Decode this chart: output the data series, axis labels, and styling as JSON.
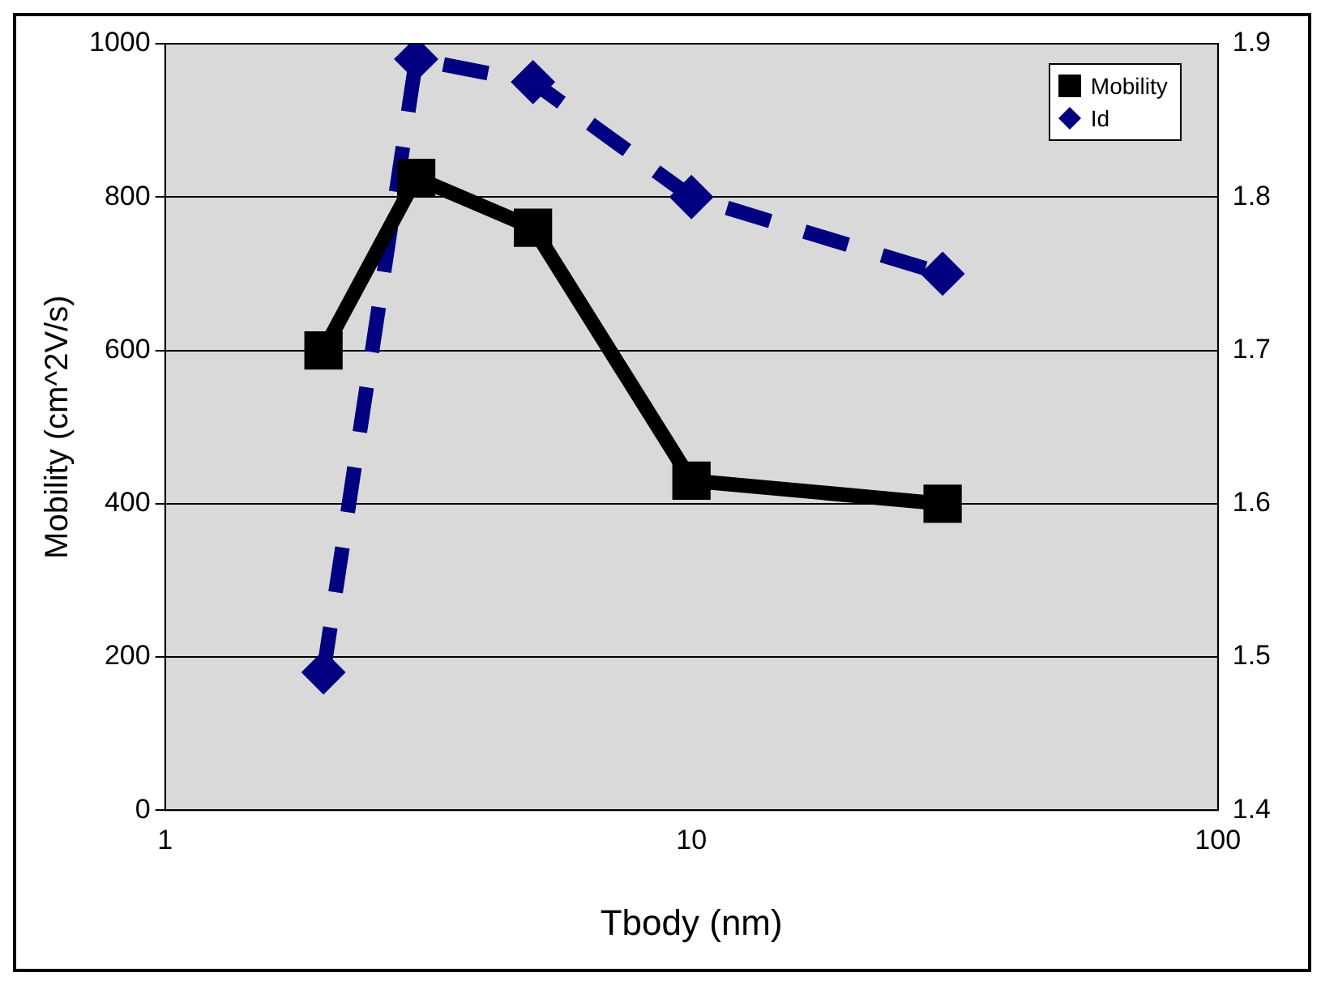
{
  "chart_data": {
    "type": "line",
    "xlabel": "Tbody (nm)",
    "ylabel": "Mobility (cm^2V/s)",
    "log": "x",
    "xlim": [
      1,
      100
    ],
    "xticks": [
      1,
      10,
      100
    ],
    "ylim": [
      0,
      1000
    ],
    "yticks": [
      0,
      200,
      400,
      600,
      800,
      1000
    ],
    "y2lim": [
      1.4,
      1.9
    ],
    "y2ticks": [
      1.4,
      1.5,
      1.6,
      1.7,
      1.8,
      1.9
    ],
    "grid": "y",
    "legend": "top right",
    "x": [
      2,
      3,
      5,
      10,
      30
    ],
    "series": [
      {
        "name": "Mobility",
        "color": "#000000",
        "values": [
          600,
          825,
          760,
          430,
          400
        ],
        "marker": "square",
        "line_style": "solid"
      },
      {
        "name": "Id",
        "color": "#000080",
        "values": [
          1.49,
          1.89,
          1.875,
          1.8,
          1.75
        ],
        "axis": "y2",
        "marker": "diamond",
        "line_style": "dashed"
      }
    ]
  }
}
